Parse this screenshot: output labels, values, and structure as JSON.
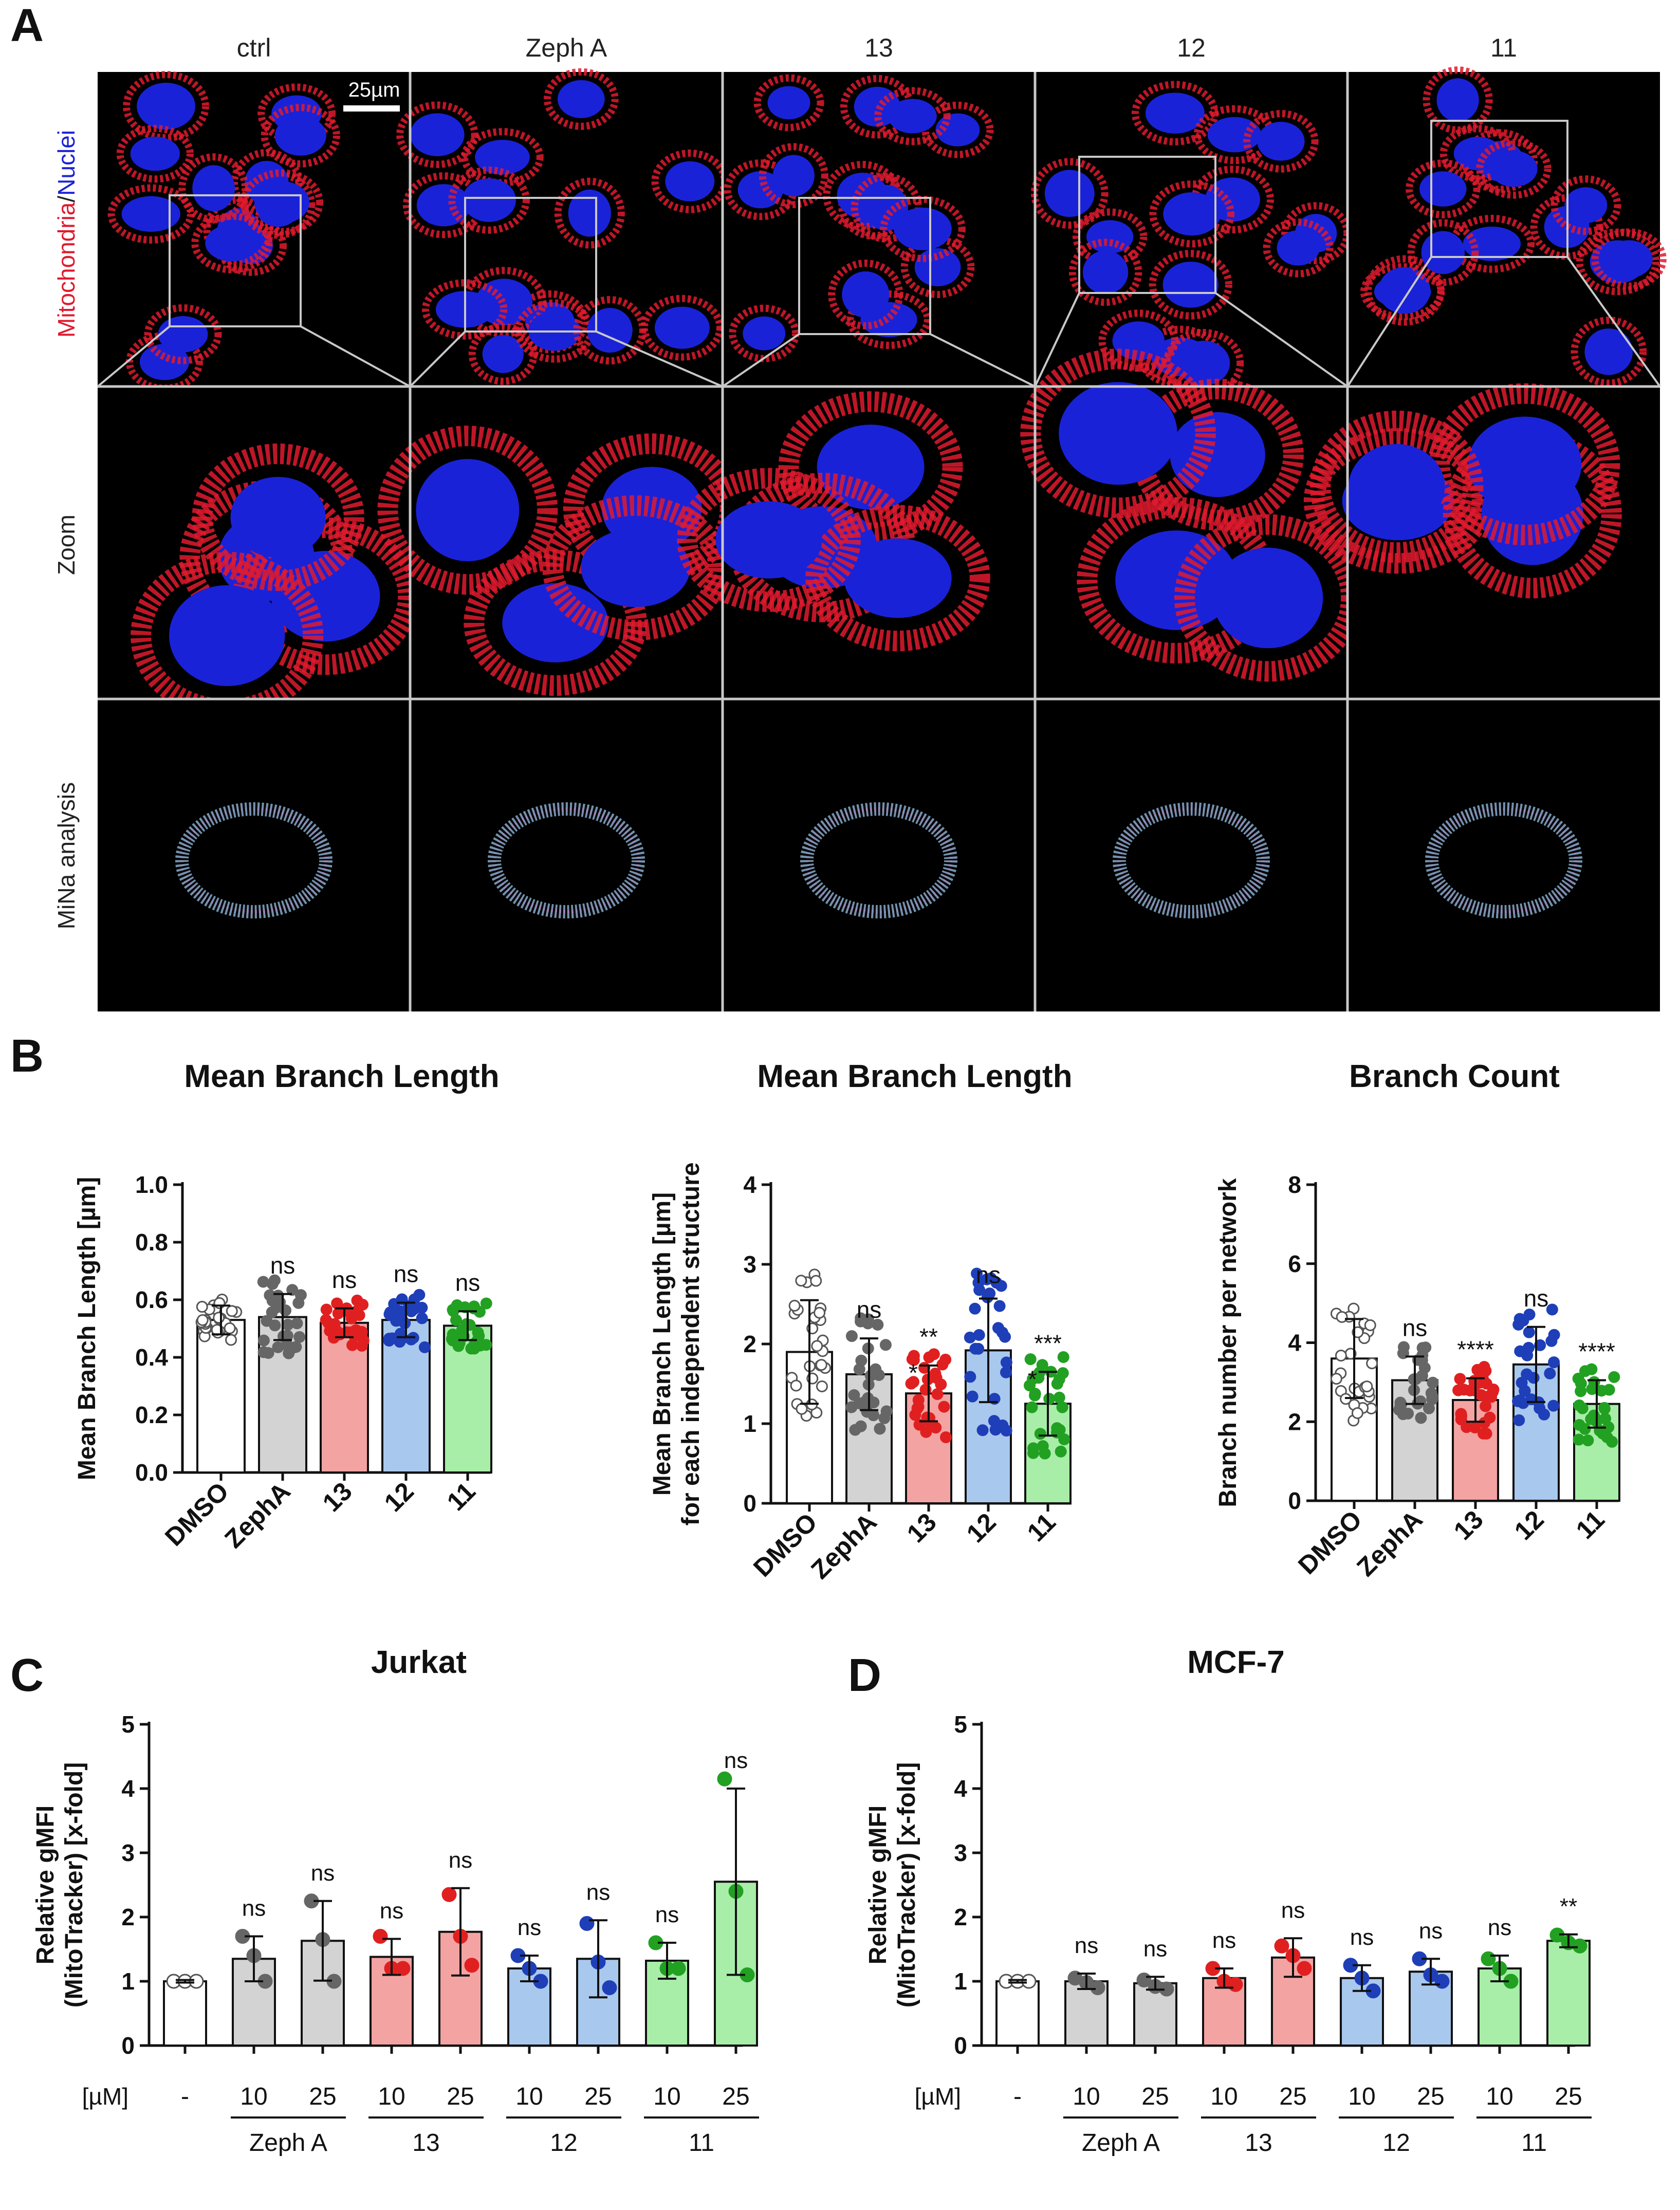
{
  "panel_letters": [
    "A",
    "B",
    "C",
    "D"
  ],
  "microscopy": {
    "columns": [
      "ctrl",
      "Zeph  A",
      "13",
      "12",
      "11"
    ],
    "row_labels": {
      "stain_red": "Mitochondria",
      "slash": "/",
      "stain_blue": "Nuclei",
      "zoom": "Zoom",
      "mina": "MiNa analysis"
    },
    "scale_bar": "25µm",
    "colors": {
      "mito": "#e01a2e",
      "nuclei": "#1a22d8",
      "background": "#000000",
      "skeleton": "#7fa0c0"
    }
  },
  "bracket_group_labels": [
    "Zeph  A",
    "13",
    "12",
    "11"
  ],
  "chart_data": [
    {
      "type": "bar",
      "title": "Mean Branch Length",
      "ylabel": "Mean Branch Length [µm]",
      "categories": [
        "DMSO",
        "ZephA",
        "13",
        "12",
        "11"
      ],
      "values": [
        0.53,
        0.54,
        0.52,
        0.53,
        0.51
      ],
      "errors": [
        0.05,
        0.08,
        0.05,
        0.06,
        0.05
      ],
      "ylim": [
        0,
        1.0
      ],
      "yticks": [
        "0.0",
        "0.2",
        "0.4",
        "0.6",
        "0.8",
        "1.0"
      ],
      "significance": [
        "",
        "ns",
        "ns",
        "ns",
        "ns"
      ],
      "colors": [
        "#ffffff",
        "#d3d3d3",
        "#f4a3a3",
        "#a9c8ee",
        "#a8eea8"
      ],
      "dot_colors": [
        "#ffffff",
        "#666666",
        "#e02020",
        "#1f3fb8",
        "#22a022"
      ]
    },
    {
      "type": "bar",
      "title": "Mean Branch Length",
      "ylabel": [
        "Mean Branch Length [µm]",
        "for each independent structure"
      ],
      "categories": [
        "DMSO",
        "ZephA",
        "13",
        "12",
        "11"
      ],
      "values": [
        1.9,
        1.62,
        1.38,
        1.92,
        1.25
      ],
      "errors": [
        0.65,
        0.45,
        0.35,
        0.65,
        0.4
      ],
      "ylim": [
        0,
        4
      ],
      "yticks": [
        "0",
        "1",
        "2",
        "3",
        "4"
      ],
      "significance": [
        "",
        "ns",
        "**",
        "ns",
        "***"
      ],
      "significance2": [
        "",
        "",
        "*",
        "",
        "*"
      ],
      "colors": [
        "#ffffff",
        "#d3d3d3",
        "#f4a3a3",
        "#a9c8ee",
        "#a8eea8"
      ],
      "dot_colors": [
        "#ffffff",
        "#666666",
        "#e02020",
        "#1f3fb8",
        "#22a022"
      ]
    },
    {
      "type": "bar",
      "title": "Branch Count",
      "ylabel": "Branch number per network",
      "categories": [
        "DMSO",
        "ZephA",
        "13",
        "12",
        "11"
      ],
      "values": [
        3.6,
        3.05,
        2.55,
        3.45,
        2.45
      ],
      "errors": [
        1.0,
        0.6,
        0.55,
        0.95,
        0.6
      ],
      "ylim": [
        0,
        8
      ],
      "yticks": [
        "0",
        "2",
        "4",
        "6",
        "8"
      ],
      "significance": [
        "",
        "ns",
        "****",
        "ns",
        "****"
      ],
      "colors": [
        "#ffffff",
        "#d3d3d3",
        "#f4a3a3",
        "#a9c8ee",
        "#a8eea8"
      ],
      "dot_colors": [
        "#ffffff",
        "#666666",
        "#e02020",
        "#1f3fb8",
        "#22a022"
      ]
    },
    {
      "type": "bar",
      "title": "Jurkat",
      "ylabel": [
        "Relative gMFI",
        "(MitoTracker) [x-fold]"
      ],
      "xunit": "[µM]",
      "categories": [
        "-",
        "10",
        "25",
        "10",
        "25",
        "10",
        "25",
        "10",
        "25"
      ],
      "groups": [
        "Zeph  A",
        "13",
        "12",
        "11"
      ],
      "values": [
        1.0,
        1.35,
        1.63,
        1.38,
        1.77,
        1.2,
        1.35,
        1.32,
        2.55
      ],
      "errors": [
        0.02,
        0.35,
        0.62,
        0.28,
        0.68,
        0.2,
        0.6,
        0.28,
        1.45
      ],
      "points": [
        [
          1.0,
          1.0,
          1.0
        ],
        [
          1.7,
          1.4,
          1.0
        ],
        [
          2.25,
          1.65,
          1.0
        ],
        [
          1.7,
          1.2,
          1.2
        ],
        [
          2.35,
          1.7,
          1.25
        ],
        [
          1.4,
          1.2,
          1.0
        ],
        [
          1.9,
          1.3,
          0.9
        ],
        [
          1.6,
          1.2,
          1.2
        ],
        [
          4.15,
          2.4,
          1.1
        ]
      ],
      "ylim": [
        0,
        5
      ],
      "yticks": [
        "0",
        "1",
        "2",
        "3",
        "4",
        "5"
      ],
      "significance": [
        "",
        "ns",
        "ns",
        "ns",
        "ns",
        "ns",
        "ns",
        "ns",
        "ns"
      ],
      "colors": [
        "#ffffff",
        "#d3d3d3",
        "#d3d3d3",
        "#f4a3a3",
        "#f4a3a3",
        "#a9c8ee",
        "#a9c8ee",
        "#a8eea8",
        "#a8eea8"
      ],
      "dot_colors": [
        "#ffffff",
        "#666666",
        "#666666",
        "#e02020",
        "#e02020",
        "#1f3fb8",
        "#1f3fb8",
        "#22a022",
        "#22a022"
      ]
    },
    {
      "type": "bar",
      "title": "MCF-7",
      "ylabel": [
        "Relative gMFI",
        "(MitoTracker) [x-fold]"
      ],
      "xunit": "[µM]",
      "categories": [
        "-",
        "10",
        "25",
        "10",
        "25",
        "10",
        "25",
        "10",
        "25"
      ],
      "groups": [
        "Zeph  A",
        "13",
        "12",
        "11"
      ],
      "values": [
        1.0,
        1.0,
        0.97,
        1.05,
        1.37,
        1.05,
        1.15,
        1.2,
        1.63
      ],
      "errors": [
        0.02,
        0.12,
        0.1,
        0.15,
        0.3,
        0.2,
        0.2,
        0.2,
        0.1
      ],
      "points": [
        [
          1.0,
          1.0,
          1.0
        ],
        [
          1.05,
          0.98,
          0.9
        ],
        [
          1.02,
          0.92,
          0.88
        ],
        [
          1.2,
          1.0,
          0.95
        ],
        [
          1.55,
          1.4,
          1.2
        ],
        [
          1.25,
          1.05,
          0.85
        ],
        [
          1.35,
          1.1,
          1.0
        ],
        [
          1.35,
          1.2,
          1.0
        ],
        [
          1.72,
          1.6,
          1.55
        ]
      ],
      "ylim": [
        0,
        5
      ],
      "yticks": [
        "0",
        "1",
        "2",
        "3",
        "4",
        "5"
      ],
      "significance": [
        "",
        "ns",
        "ns",
        "ns",
        "ns",
        "ns",
        "ns",
        "ns",
        "**"
      ],
      "colors": [
        "#ffffff",
        "#d3d3d3",
        "#d3d3d3",
        "#f4a3a3",
        "#f4a3a3",
        "#a9c8ee",
        "#a9c8ee",
        "#a8eea8",
        "#a8eea8"
      ],
      "dot_colors": [
        "#ffffff",
        "#666666",
        "#666666",
        "#e02020",
        "#e02020",
        "#1f3fb8",
        "#1f3fb8",
        "#22a022",
        "#22a022"
      ]
    }
  ]
}
